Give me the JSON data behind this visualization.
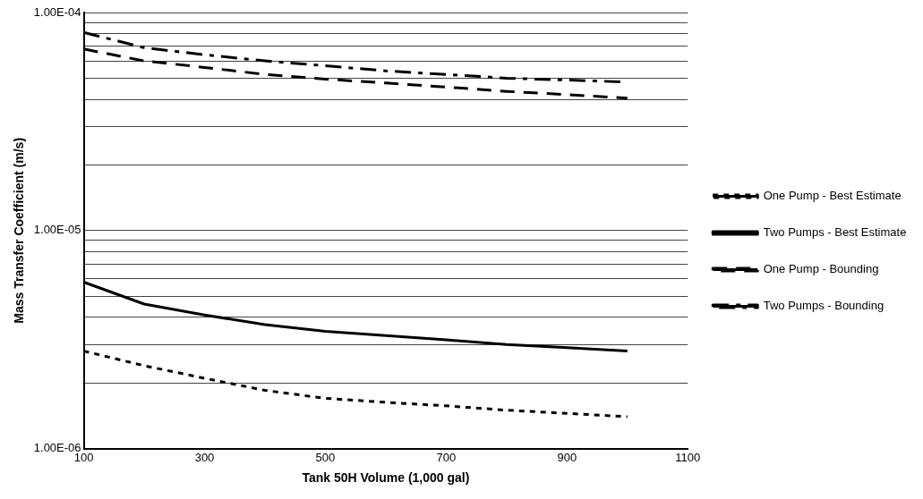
{
  "chart_data": {
    "type": "line",
    "xlabel": "Tank 50H Volume (1,000 gal)",
    "ylabel": "Mass Transfer Coefficient (m/s)",
    "x": [
      100,
      200,
      300,
      400,
      500,
      600,
      700,
      800,
      900,
      1000
    ],
    "series": [
      {
        "name": "One Pump - Best Estimate",
        "color": "#000000",
        "line_style": "dotted",
        "values": [
          2.8e-06,
          2.4e-06,
          2.1e-06,
          1.85e-06,
          1.7e-06,
          1.63e-06,
          1.57e-06,
          1.5e-06,
          1.45e-06,
          1.4e-06
        ]
      },
      {
        "name": "Two Pumps - Best Estimate",
        "color": "#000000",
        "line_style": "solid",
        "values": [
          5.8e-06,
          4.6e-06,
          4.1e-06,
          3.7e-06,
          3.45e-06,
          3.3e-06,
          3.15e-06,
          3e-06,
          2.9e-06,
          2.8e-06
        ]
      },
      {
        "name": "One Pump - Bounding",
        "color": "#000000",
        "line_style": "dashed",
        "values": [
          6.8e-05,
          6e-05,
          5.6e-05,
          5.2e-05,
          4.95e-05,
          4.75e-05,
          4.55e-05,
          4.35e-05,
          4.2e-05,
          4.05e-05
        ]
      },
      {
        "name": "Two Pumps - Bounding",
        "color": "#000000",
        "line_style": "dashdot",
        "values": [
          8.1e-05,
          6.9e-05,
          6.4e-05,
          6e-05,
          5.7e-05,
          5.4e-05,
          5.2e-05,
          5e-05,
          4.9e-05,
          4.8e-05
        ]
      }
    ],
    "xlim": [
      100,
      1100
    ],
    "xticks": [
      100,
      300,
      500,
      700,
      900,
      1100
    ],
    "ylim": [
      1e-06,
      0.0001
    ],
    "yticks": [
      {
        "value": 1e-06,
        "label": "1.00E-06"
      },
      {
        "value": 2e-06,
        "label": null
      },
      {
        "value": 3e-06,
        "label": null
      },
      {
        "value": 4e-06,
        "label": null
      },
      {
        "value": 5e-06,
        "label": null
      },
      {
        "value": 6e-06,
        "label": null
      },
      {
        "value": 7e-06,
        "label": null
      },
      {
        "value": 8e-06,
        "label": null
      },
      {
        "value": 9e-06,
        "label": null
      },
      {
        "value": 1e-05,
        "label": "1.00E-05"
      },
      {
        "value": 2e-05,
        "label": null
      },
      {
        "value": 3e-05,
        "label": null
      },
      {
        "value": 4e-05,
        "label": null
      },
      {
        "value": 5e-05,
        "label": null
      },
      {
        "value": 6e-05,
        "label": null
      },
      {
        "value": 7e-05,
        "label": null
      },
      {
        "value": 8e-05,
        "label": null
      },
      {
        "value": 9e-05,
        "label": null
      },
      {
        "value": 0.0001,
        "label": "1.00E-04"
      }
    ],
    "log": "y",
    "grid": "y",
    "legend": "right",
    "marker": "none"
  }
}
